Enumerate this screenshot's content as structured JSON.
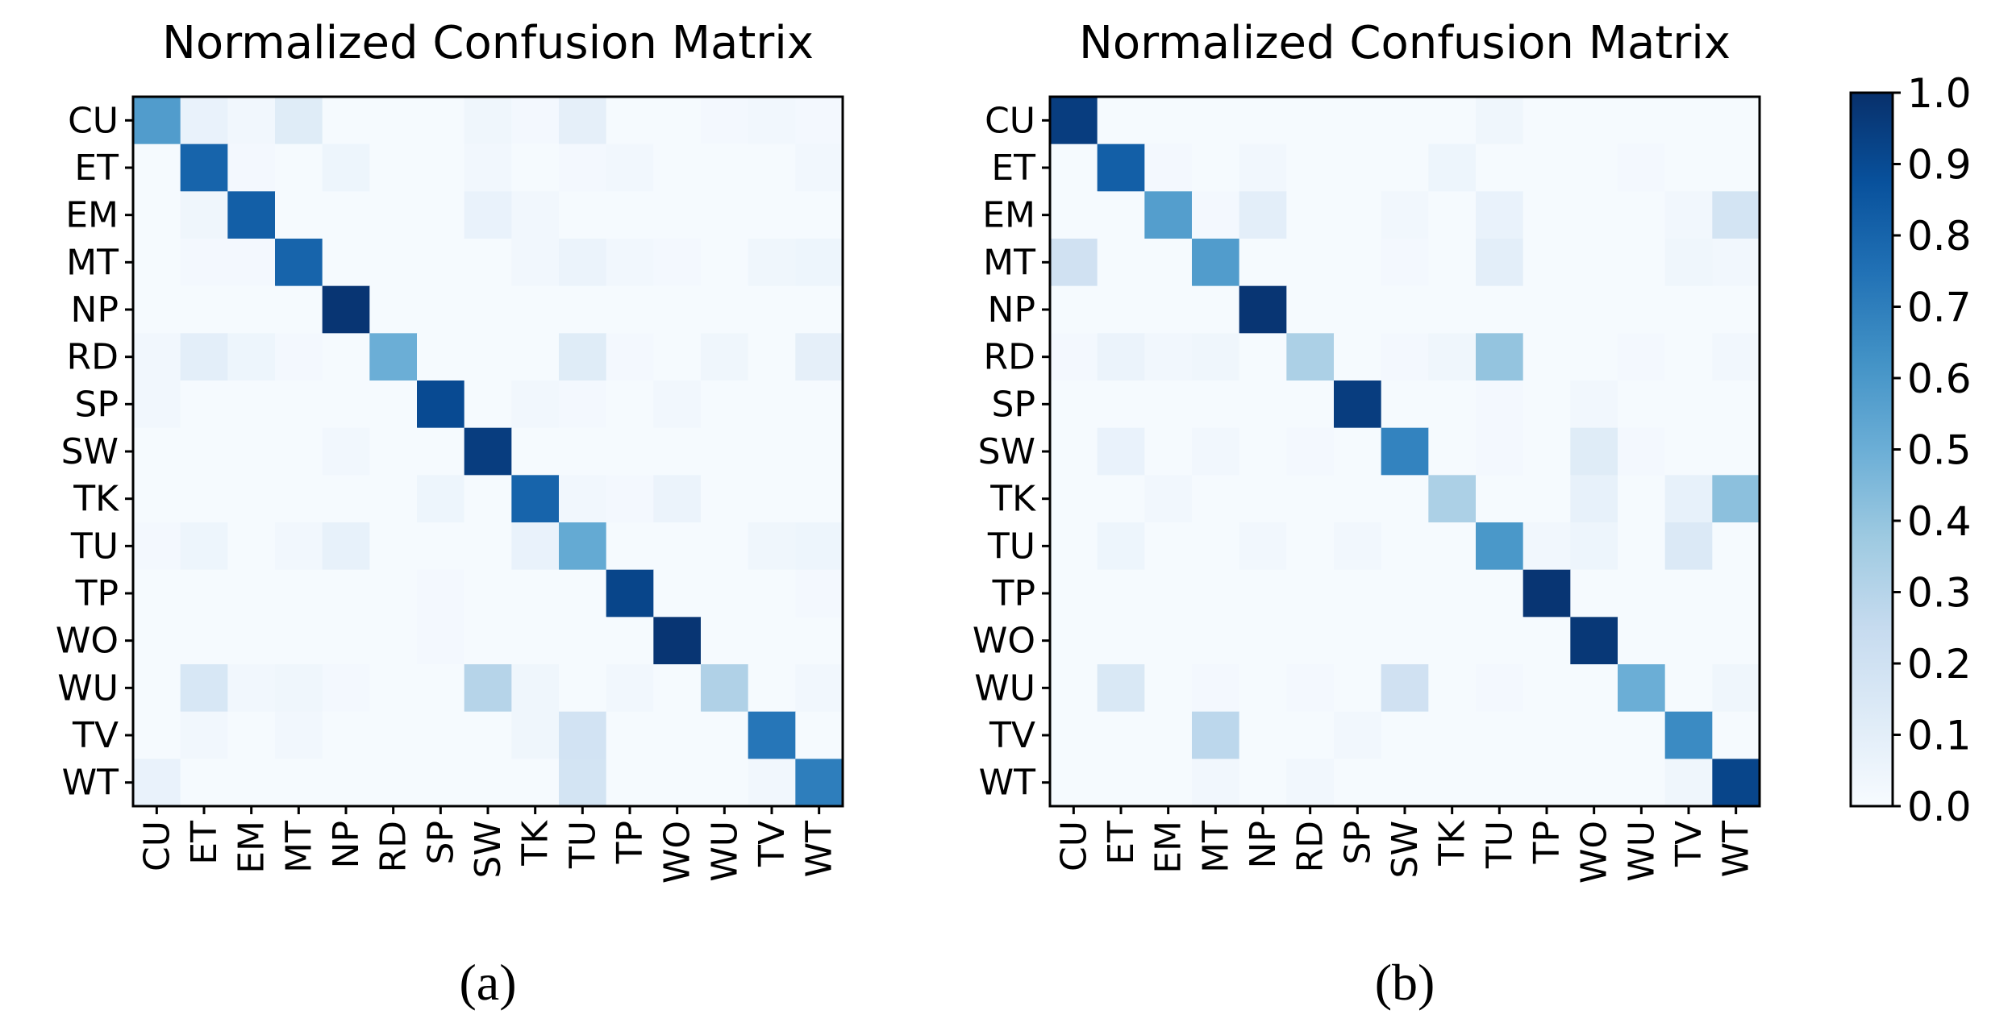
{
  "chart_data": [
    {
      "type": "heatmap",
      "title": "Normalized Confusion Matrix",
      "caption": "(a)",
      "row_labels": [
        "CU",
        "ET",
        "EM",
        "MT",
        "NP",
        "RD",
        "SP",
        "SW",
        "TK",
        "TU",
        "TP",
        "WO",
        "WU",
        "TV",
        "WT"
      ],
      "col_labels": [
        "CU",
        "ET",
        "EM",
        "MT",
        "NP",
        "RD",
        "SP",
        "SW",
        "TK",
        "TU",
        "TP",
        "WO",
        "WU",
        "TV",
        "WT"
      ],
      "value_range": [
        0,
        1
      ],
      "values": [
        [
          0.58,
          0.07,
          0.03,
          0.12,
          0.01,
          0.01,
          0.01,
          0.04,
          0.02,
          0.09,
          0.01,
          0.01,
          0.02,
          0.03,
          0.02
        ],
        [
          0.01,
          0.8,
          0.02,
          0.01,
          0.05,
          0.01,
          0.01,
          0.03,
          0.01,
          0.02,
          0.03,
          0.01,
          0.01,
          0.01,
          0.03
        ],
        [
          0.01,
          0.04,
          0.82,
          0.01,
          0.01,
          0.01,
          0.01,
          0.07,
          0.03,
          0.01,
          0.01,
          0.01,
          0.01,
          0.01,
          0.01
        ],
        [
          0.01,
          0.02,
          0.02,
          0.8,
          0.01,
          0.01,
          0.01,
          0.01,
          0.03,
          0.06,
          0.03,
          0.02,
          0.01,
          0.04,
          0.05
        ],
        [
          0.01,
          0.01,
          0.01,
          0.01,
          0.98,
          0.01,
          0.01,
          0.01,
          0.01,
          0.01,
          0.01,
          0.01,
          0.01,
          0.01,
          0.01
        ],
        [
          0.03,
          0.1,
          0.05,
          0.02,
          0.01,
          0.5,
          0.01,
          0.01,
          0.01,
          0.12,
          0.02,
          0.01,
          0.04,
          0.01,
          0.09
        ],
        [
          0.03,
          0.01,
          0.01,
          0.01,
          0.01,
          0.01,
          0.9,
          0.01,
          0.03,
          0.02,
          0.01,
          0.03,
          0.01,
          0.01,
          0.01
        ],
        [
          0.01,
          0.01,
          0.01,
          0.01,
          0.03,
          0.01,
          0.01,
          0.95,
          0.01,
          0.01,
          0.01,
          0.01,
          0.01,
          0.01,
          0.01
        ],
        [
          0.01,
          0.01,
          0.01,
          0.01,
          0.01,
          0.01,
          0.05,
          0.01,
          0.8,
          0.03,
          0.02,
          0.06,
          0.01,
          0.01,
          0.01
        ],
        [
          0.02,
          0.05,
          0.01,
          0.03,
          0.08,
          0.01,
          0.01,
          0.01,
          0.07,
          0.52,
          0.01,
          0.01,
          0.01,
          0.04,
          0.05
        ],
        [
          0.01,
          0.01,
          0.01,
          0.01,
          0.01,
          0.01,
          0.02,
          0.01,
          0.01,
          0.01,
          0.92,
          0.01,
          0.01,
          0.01,
          0.02
        ],
        [
          0.01,
          0.01,
          0.01,
          0.01,
          0.01,
          0.01,
          0.02,
          0.01,
          0.01,
          0.01,
          0.01,
          0.98,
          0.01,
          0.01,
          0.01
        ],
        [
          0.01,
          0.16,
          0.03,
          0.04,
          0.02,
          0.01,
          0.01,
          0.3,
          0.04,
          0.01,
          0.03,
          0.01,
          0.32,
          0.01,
          0.03
        ],
        [
          0.01,
          0.03,
          0.01,
          0.03,
          0.01,
          0.01,
          0.01,
          0.01,
          0.04,
          0.19,
          0.01,
          0.01,
          0.01,
          0.73,
          0.01
        ],
        [
          0.07,
          0.01,
          0.01,
          0.01,
          0.01,
          0.01,
          0.01,
          0.01,
          0.01,
          0.18,
          0.01,
          0.01,
          0.01,
          0.03,
          0.7
        ]
      ]
    },
    {
      "type": "heatmap",
      "title": "Normalized Confusion Matrix",
      "caption": "(b)",
      "row_labels": [
        "CU",
        "ET",
        "EM",
        "MT",
        "NP",
        "RD",
        "SP",
        "SW",
        "TK",
        "TU",
        "TP",
        "WO",
        "WU",
        "TV",
        "WT"
      ],
      "col_labels": [
        "CU",
        "ET",
        "EM",
        "MT",
        "NP",
        "RD",
        "SP",
        "SW",
        "TK",
        "TU",
        "TP",
        "WO",
        "WU",
        "TV",
        "WT"
      ],
      "value_range": [
        0,
        1
      ],
      "values": [
        [
          0.95,
          0.01,
          0.01,
          0.01,
          0.01,
          0.01,
          0.01,
          0.01,
          0.01,
          0.04,
          0.01,
          0.01,
          0.01,
          0.01,
          0.01
        ],
        [
          0.01,
          0.82,
          0.02,
          0.01,
          0.03,
          0.01,
          0.01,
          0.01,
          0.05,
          0.01,
          0.01,
          0.01,
          0.02,
          0.01,
          0.01
        ],
        [
          0.01,
          0.01,
          0.57,
          0.02,
          0.1,
          0.01,
          0.01,
          0.03,
          0.01,
          0.07,
          0.01,
          0.01,
          0.01,
          0.03,
          0.18
        ],
        [
          0.2,
          0.01,
          0.01,
          0.58,
          0.01,
          0.01,
          0.01,
          0.02,
          0.01,
          0.1,
          0.01,
          0.01,
          0.01,
          0.04,
          0.03
        ],
        [
          0.01,
          0.01,
          0.01,
          0.01,
          0.98,
          0.01,
          0.01,
          0.01,
          0.01,
          0.01,
          0.01,
          0.01,
          0.01,
          0.01,
          0.01
        ],
        [
          0.02,
          0.06,
          0.03,
          0.04,
          0.01,
          0.33,
          0.01,
          0.02,
          0.04,
          0.4,
          0.01,
          0.01,
          0.02,
          0.01,
          0.03
        ],
        [
          0.01,
          0.01,
          0.01,
          0.01,
          0.01,
          0.01,
          0.95,
          0.01,
          0.01,
          0.02,
          0.01,
          0.03,
          0.01,
          0.01,
          0.01
        ],
        [
          0.01,
          0.07,
          0.01,
          0.03,
          0.01,
          0.02,
          0.01,
          0.68,
          0.01,
          0.02,
          0.01,
          0.12,
          0.02,
          0.01,
          0.01
        ],
        [
          0.01,
          0.01,
          0.03,
          0.01,
          0.01,
          0.01,
          0.01,
          0.01,
          0.33,
          0.01,
          0.01,
          0.08,
          0.01,
          0.08,
          0.42
        ],
        [
          0.01,
          0.05,
          0.01,
          0.01,
          0.03,
          0.01,
          0.03,
          0.01,
          0.01,
          0.6,
          0.03,
          0.05,
          0.01,
          0.14,
          0.01
        ],
        [
          0.01,
          0.01,
          0.01,
          0.01,
          0.01,
          0.01,
          0.01,
          0.01,
          0.01,
          0.01,
          0.98,
          0.01,
          0.01,
          0.01,
          0.01
        ],
        [
          0.01,
          0.01,
          0.01,
          0.01,
          0.01,
          0.01,
          0.01,
          0.01,
          0.01,
          0.01,
          0.01,
          0.97,
          0.01,
          0.01,
          0.01
        ],
        [
          0.01,
          0.15,
          0.01,
          0.02,
          0.01,
          0.02,
          0.01,
          0.2,
          0.01,
          0.02,
          0.01,
          0.01,
          0.5,
          0.01,
          0.04
        ],
        [
          0.01,
          0.01,
          0.01,
          0.28,
          0.01,
          0.01,
          0.03,
          0.01,
          0.01,
          0.01,
          0.01,
          0.01,
          0.01,
          0.65,
          0.01
        ],
        [
          0.01,
          0.01,
          0.01,
          0.03,
          0.01,
          0.03,
          0.01,
          0.01,
          0.01,
          0.01,
          0.01,
          0.01,
          0.01,
          0.04,
          0.92
        ]
      ]
    }
  ],
  "colorbar": {
    "colormap": "Blues",
    "range": [
      0,
      1
    ],
    "ticks": [
      "0.0",
      "0.1",
      "0.2",
      "0.3",
      "0.4",
      "0.5",
      "0.6",
      "0.7",
      "0.8",
      "0.9",
      "1.0"
    ]
  }
}
